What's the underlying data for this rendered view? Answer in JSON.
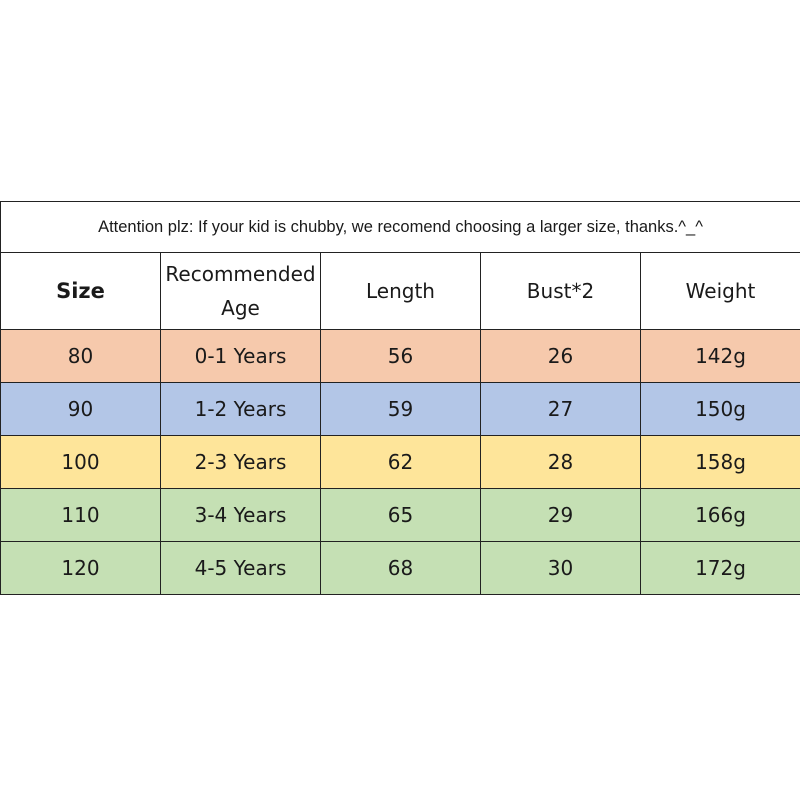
{
  "notice": "Attention plz: If your kid is chubby, we recomend choosing a larger size, thanks.^_^",
  "headers": {
    "size": "Size",
    "age_line1": "Recommended",
    "age_line2": "Age",
    "length": "Length",
    "bust": "Bust*2",
    "weight": "Weight"
  },
  "rows": [
    {
      "size": "80",
      "age": "0-1 Years",
      "length": "56",
      "bust": "26",
      "weight": "142g",
      "color": "#f6c9ac"
    },
    {
      "size": "90",
      "age": "1-2 Years",
      "length": "59",
      "bust": "27",
      "weight": "150g",
      "color": "#b3c6e7"
    },
    {
      "size": "100",
      "age": "2-3 Years",
      "length": "62",
      "bust": "28",
      "weight": "158g",
      "color": "#fee59a"
    },
    {
      "size": "110",
      "age": "3-4 Years",
      "length": "65",
      "bust": "29",
      "weight": "166g",
      "color": "#c5e0b4"
    },
    {
      "size": "120",
      "age": "4-5 Years",
      "length": "68",
      "bust": "30",
      "weight": "172g",
      "color": "#c5e0b4"
    }
  ]
}
